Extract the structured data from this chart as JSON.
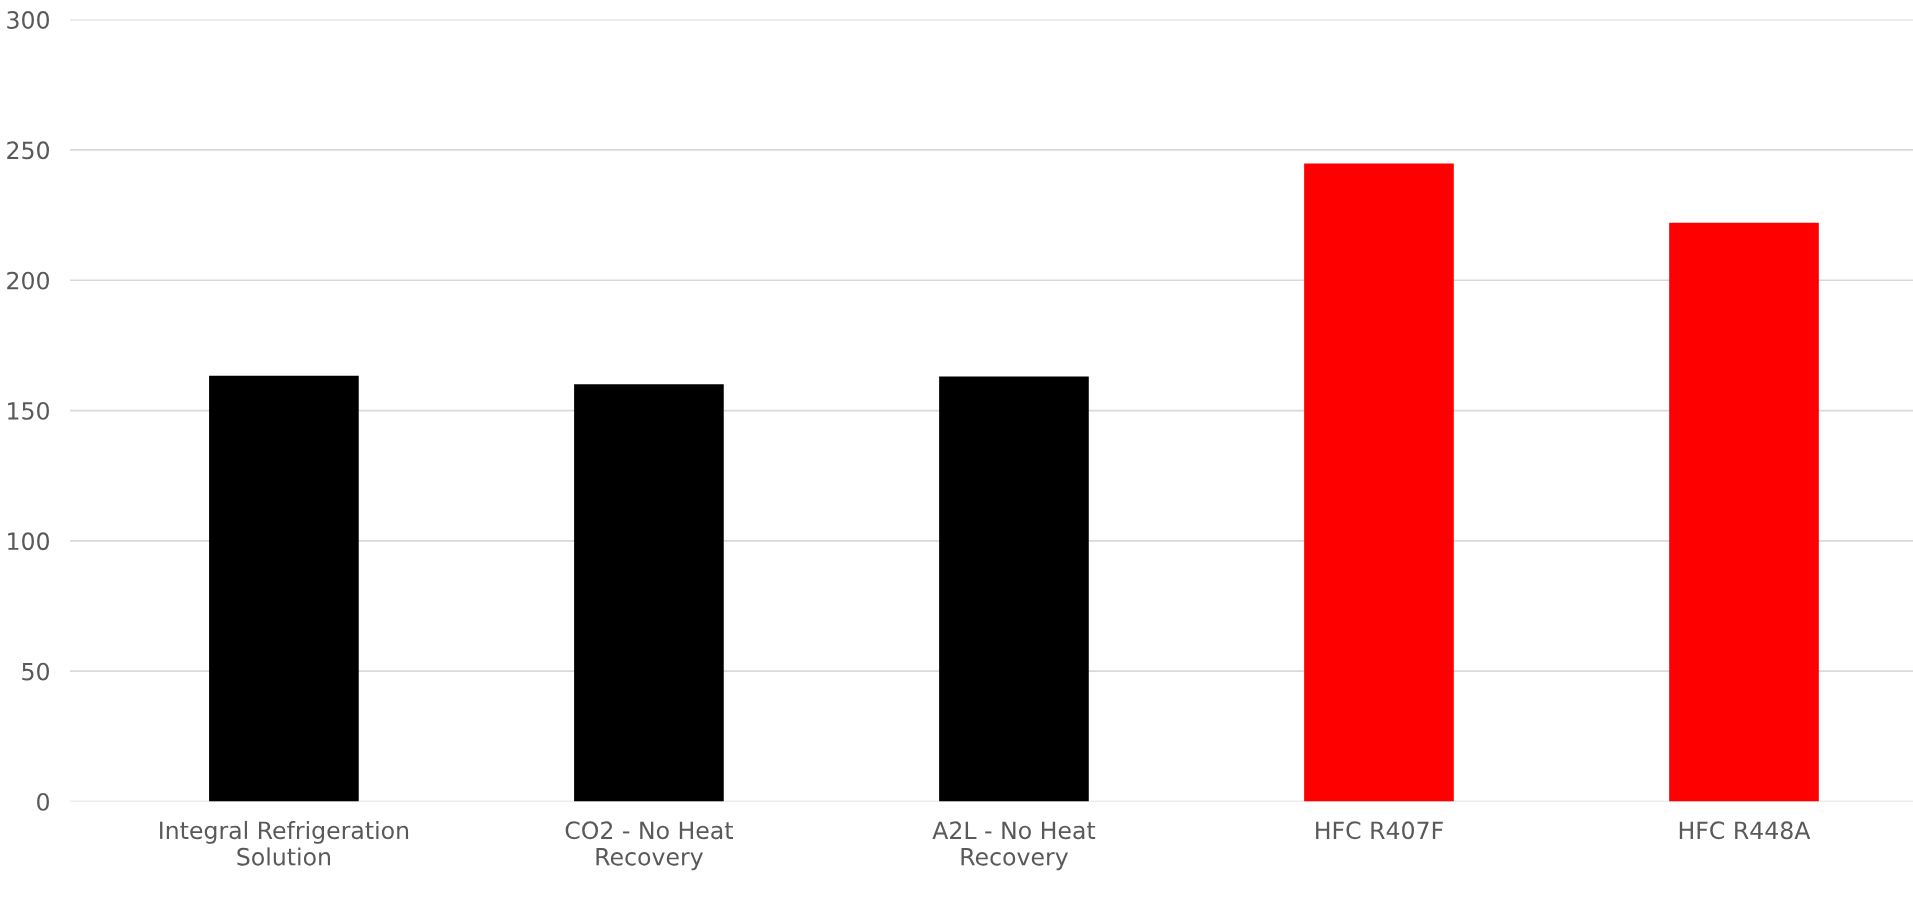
{
  "chart_data": {
    "type": "bar",
    "categories": [
      "Integral Refrigeration\nSolution",
      "CO2 - No Heat\nRecovery",
      "A2L - No Heat\nRecovery",
      "HFC R407F",
      "HFC R448A"
    ],
    "values": [
      163.4,
      160.1,
      163.1,
      244.8,
      222.1
    ],
    "colors": [
      "#000000",
      "#000000",
      "#000000",
      "#ff0000",
      "#ff0000"
    ],
    "ylim": [
      0,
      300
    ],
    "yticks": [
      0,
      50,
      100,
      150,
      200,
      250,
      300
    ],
    "grid": "y",
    "legend": false
  }
}
